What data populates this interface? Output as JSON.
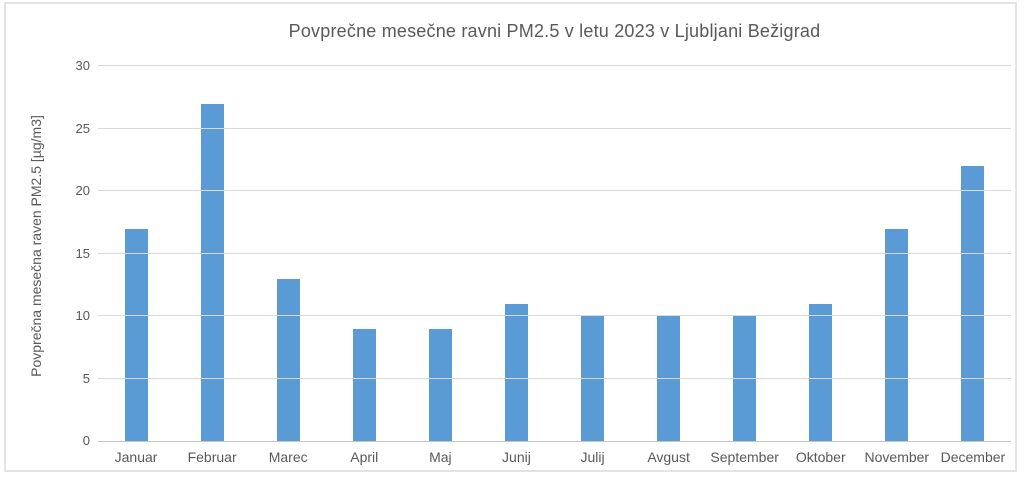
{
  "chart_data": {
    "type": "bar",
    "title": "Povprečne mesečne ravni PM2.5 v letu 2023 v Ljubljani Bežigrad",
    "ylabel": "Povprečna mesečna raven PM2.5 [µg/m3]",
    "xlabel": "",
    "categories": [
      "Januar",
      "Februar",
      "Marec",
      "April",
      "Maj",
      "Junij",
      "Julij",
      "Avgust",
      "September",
      "Oktober",
      "November",
      "December"
    ],
    "values": [
      17,
      27,
      13,
      9,
      9,
      11,
      10,
      10,
      10,
      11,
      17,
      22
    ],
    "ylim": [
      0,
      30
    ],
    "ytick_step": 5,
    "ytick_labels": [
      "0",
      "5",
      "10",
      "15",
      "20",
      "25",
      "30"
    ],
    "grid": "horizontal-only",
    "legend": "none",
    "colors": {
      "bar": "#5b9bd5",
      "gridline": "#d9d9d9",
      "axis_line": "#c6c6c6",
      "text": "#595959",
      "background": "#ffffff",
      "frame_border": "#e3e3e3"
    }
  }
}
